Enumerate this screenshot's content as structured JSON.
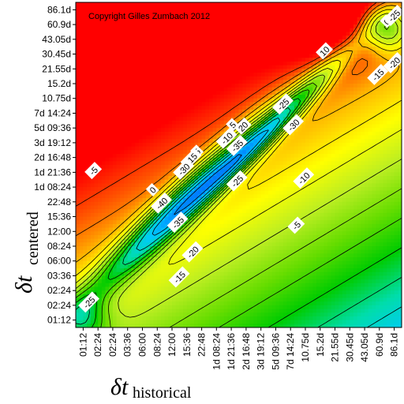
{
  "chart_data": {
    "type": "heatmap",
    "copyright": "Copyright Gilles Zumbach 2012",
    "xlabel": {
      "main": "δt",
      "sub": "historical"
    },
    "ylabel": {
      "main": "δt",
      "sub": "centered"
    },
    "x_ticks": [
      "01:12",
      "02:24",
      "02:24",
      "03:36",
      "06:00",
      "08:24",
      "12:00",
      "15:36",
      "22:48",
      "1d 08:24",
      "1d 21:36",
      "2d 16:48",
      "3d 19:12",
      "5d 09:36",
      "7d 14:24",
      "10.75d",
      "15.2d",
      "21.55d",
      "30.45d",
      "43.05d",
      "60.9d",
      "86.1d"
    ],
    "y_ticks": [
      "86.1d",
      "60.9d",
      "43.05d",
      "30.45d",
      "21.55d",
      "15.2d",
      "10.75d",
      "7d 14:24",
      "5d 09:36",
      "3d 19:12",
      "2d 16:48",
      "1d 21:36",
      "1d 08:24",
      "22:48",
      "15:36",
      "12:00",
      "08:24",
      "06:00",
      "03:36",
      "02:24",
      "02:24",
      "01:12"
    ],
    "contour_labels": [
      {
        "text": "0",
        "u": 20.5,
        "v": 20.2
      },
      {
        "text": "-25",
        "u": 21.0,
        "v": 20.6
      },
      {
        "text": "10",
        "u": 16.3,
        "v": 18.2
      },
      {
        "text": "-20",
        "u": 21.0,
        "v": 17.4
      },
      {
        "text": "-15",
        "u": 19.9,
        "v": 16.6
      },
      {
        "text": "-25",
        "u": 13.5,
        "v": 14.6
      },
      {
        "text": "-30",
        "u": 14.2,
        "v": 13.2
      },
      {
        "text": "5",
        "u": 10.1,
        "v": 13.2
      },
      {
        "text": "20",
        "u": 10.8,
        "v": 13.1
      },
      {
        "text": "-10",
        "u": 9.7,
        "v": 12.3
      },
      {
        "text": "-35",
        "u": 10.4,
        "v": 11.8
      },
      {
        "text": "5",
        "u": 7.7,
        "v": 11.4
      },
      {
        "text": "-15",
        "u": 7.3,
        "v": 10.9
      },
      {
        "text": "-30",
        "u": 6.8,
        "v": 10.2
      },
      {
        "text": "-5",
        "u": 0.7,
        "v": 10.1
      },
      {
        "text": "-25",
        "u": 10.4,
        "v": 9.4
      },
      {
        "text": "-10",
        "u": 14.9,
        "v": 9.6
      },
      {
        "text": "0",
        "u": 4.7,
        "v": 8.8
      },
      {
        "text": "-40",
        "u": 5.3,
        "v": 7.9
      },
      {
        "text": "-5",
        "u": 14.4,
        "v": 6.4
      },
      {
        "text": "-35",
        "u": 6.4,
        "v": 6.6
      },
      {
        "text": "-20",
        "u": 7.4,
        "v": 4.6
      },
      {
        "text": "-15",
        "u": 6.5,
        "v": 2.9
      },
      {
        "text": "-25",
        "u": 0.4,
        "v": 1.2
      }
    ],
    "colorscale": [
      "#0000ff",
      "#0077ff",
      "#00c8ff",
      "#00ddaa",
      "#00cc00",
      "#66dd00",
      "#bbee22",
      "#ffff00",
      "#ffbb00",
      "#ff5500",
      "#ff0000"
    ],
    "value_range": [
      -45,
      30
    ]
  }
}
